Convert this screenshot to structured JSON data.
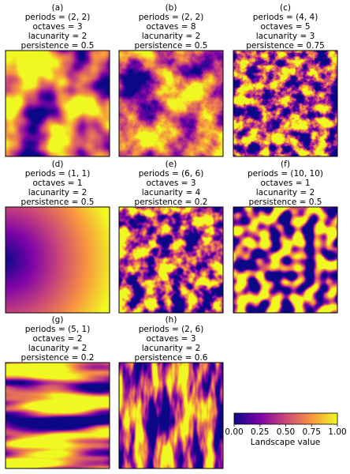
{
  "panels": [
    {
      "label": "(a)",
      "periods": "periods = (2, 2)",
      "octaves": "octaves = 3",
      "lacunarity": "lacunarity = 2",
      "persistence": "persistence = 0.5"
    },
    {
      "label": "(b)",
      "periods": "periods = (2, 2)",
      "octaves": "octaves = 8",
      "lacunarity": "lacunarity = 2",
      "persistence": "persistence = 0.5"
    },
    {
      "label": "(c)",
      "periods": "periods = (4, 4)",
      "octaves": "octaves = 5",
      "lacunarity": "lacunarity = 3",
      "persistence": "persistence = 0.75"
    },
    {
      "label": "(d)",
      "periods": "periods = (1, 1)",
      "octaves": "octaves = 1",
      "lacunarity": "lacunarity = 2",
      "persistence": "persistence = 0.5"
    },
    {
      "label": "(e)",
      "periods": "periods = (6, 6)",
      "octaves": "octaves = 3",
      "lacunarity": "lacunarity = 4",
      "persistence": "persistence = 0.2"
    },
    {
      "label": "(f)",
      "periods": "periods = (10, 10)",
      "octaves": "octaves = 1",
      "lacunarity": "lacunarity = 2",
      "persistence": "persistence = 0.5"
    },
    {
      "label": "(g)",
      "periods": "periods = (5, 1)",
      "octaves": "octaves = 2",
      "lacunarity": "lacunarity = 2",
      "persistence": "persistence = 0.2"
    },
    {
      "label": "(h)",
      "periods": "periods = (2, 6)",
      "octaves": "octaves = 3",
      "lacunarity": "lacunarity = 2",
      "persistence": "persistence = 0.6"
    }
  ],
  "colorbar": {
    "label": "Landscape value",
    "lim": [
      0,
      1
    ],
    "ticks": [
      {
        "value": 0,
        "label": "0.00"
      },
      {
        "value": 0.25,
        "label": "0.25"
      },
      {
        "value": 0.5,
        "label": "0.50"
      },
      {
        "value": 0.75,
        "label": "0.75"
      },
      {
        "value": 1,
        "label": "1.00"
      }
    ]
  }
}
